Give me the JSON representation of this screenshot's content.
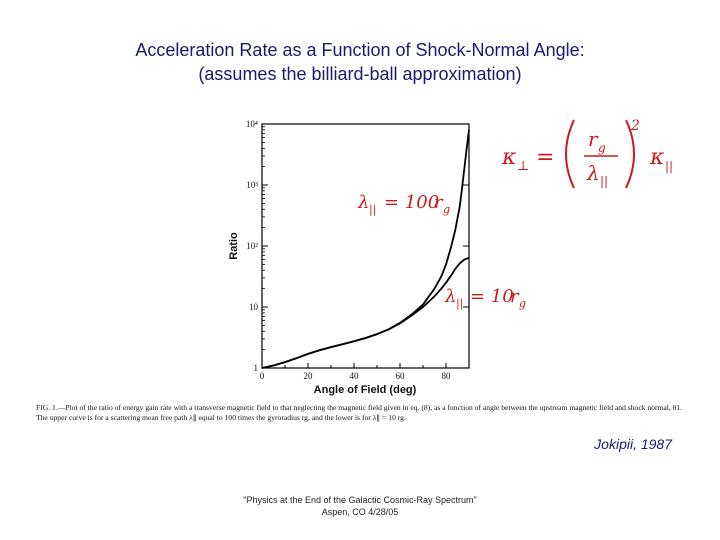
{
  "slide": {
    "title_line1": "Acceleration Rate as a Function of Shock-Normal Angle:",
    "title_line2": "(assumes the billiard-ball approximation)",
    "citation": "Jokipii, 1987",
    "footer_line1": "\"Physics at the End of the Galactic Cosmic-Ray Spectrum\"",
    "footer_line2": "Aspen, CO 4/28/05",
    "caption": "FIG. 1.—Plot of the ratio of energy gain rate with a transverse magnetic field to that neglecting the magnetic field given in eq. (8), as a function of angle between the upstream magnetic field and shock normal, θ1. The upper curve is for a scattering mean free path λ∥ equal to 100 times the gyroradius rg, and the lower is for λ∥ = 10 rg."
  },
  "equations": {
    "kappa_relation": "κ⊥ = (rg/λ∥)² κ∥",
    "upper_label": "λ∥ = 100rg",
    "lower_label": "λ∥ = 10rg"
  },
  "chart_data": {
    "type": "line",
    "title": "",
    "xlabel": "Angle of Field (deg)",
    "ylabel": "Ratio",
    "xlim": [
      0,
      90
    ],
    "ylim": [
      1,
      10000
    ],
    "yscale": "log",
    "x_ticks": [
      "0",
      "20",
      "40",
      "60",
      "80"
    ],
    "y_ticks": [
      "1",
      "10",
      "10²",
      "10³",
      "10⁴"
    ],
    "grid": false,
    "legend": "none",
    "series": [
      {
        "name": "λ∥ = 100rg",
        "color": "#000000",
        "x": [
          0,
          5,
          10,
          15,
          20,
          25,
          30,
          35,
          40,
          45,
          50,
          55,
          60,
          65,
          70,
          75,
          78,
          80,
          82,
          84,
          86,
          87,
          88,
          89,
          90
        ],
        "y": [
          1.0,
          1.1,
          1.25,
          1.45,
          1.7,
          1.95,
          2.2,
          2.45,
          2.75,
          3.1,
          3.6,
          4.3,
          5.5,
          7.5,
          11,
          20,
          32,
          50,
          90,
          180,
          450,
          900,
          1900,
          4000,
          8000
        ]
      },
      {
        "name": "λ∥ = 10rg",
        "color": "#000000",
        "x": [
          0,
          5,
          10,
          15,
          20,
          25,
          30,
          35,
          40,
          45,
          50,
          55,
          60,
          65,
          70,
          75,
          78,
          80,
          82,
          84,
          86,
          88,
          90
        ],
        "y": [
          1.0,
          1.1,
          1.25,
          1.45,
          1.7,
          1.95,
          2.2,
          2.45,
          2.75,
          3.1,
          3.6,
          4.3,
          5.4,
          7.2,
          10,
          15,
          20,
          25,
          32,
          42,
          52,
          60,
          64
        ]
      }
    ]
  }
}
